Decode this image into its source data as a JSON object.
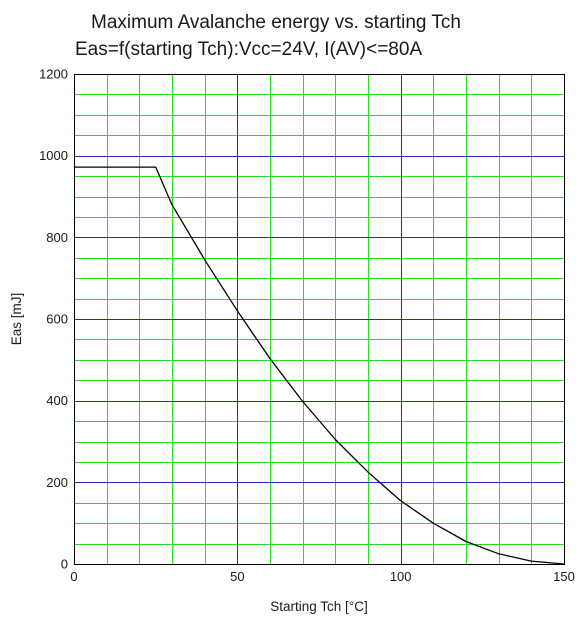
{
  "chart_data": {
    "type": "line",
    "title": "Maximum Avalanche energy vs. starting Tch",
    "subtitle": "Eas=f(starting Tch):Vcc=24V, I(AV)<=80A",
    "xlabel": "Starting Tch [°C]",
    "ylabel": "Eas [mJ]",
    "xlim": [
      0,
      150
    ],
    "ylim": [
      0,
      1200
    ],
    "x_ticks": [
      0,
      50,
      100,
      150
    ],
    "y_ticks": [
      0,
      200,
      400,
      600,
      800,
      1000,
      1200
    ],
    "x_minor_step": 10,
    "y_minor_step": 50,
    "grid": true,
    "colors": {
      "major_grid": "#2323d2",
      "minor_grid": "#22dd22",
      "line": "#000000",
      "frame": "#000000"
    },
    "series": [
      {
        "x": [
          0,
          25,
          30,
          40,
          50,
          60,
          70,
          80,
          90,
          100,
          110,
          120,
          130,
          140,
          150
        ],
        "y": [
          972,
          972,
          880,
          745,
          620,
          503,
          398,
          305,
          225,
          155,
          100,
          55,
          25,
          7,
          0
        ]
      }
    ]
  }
}
